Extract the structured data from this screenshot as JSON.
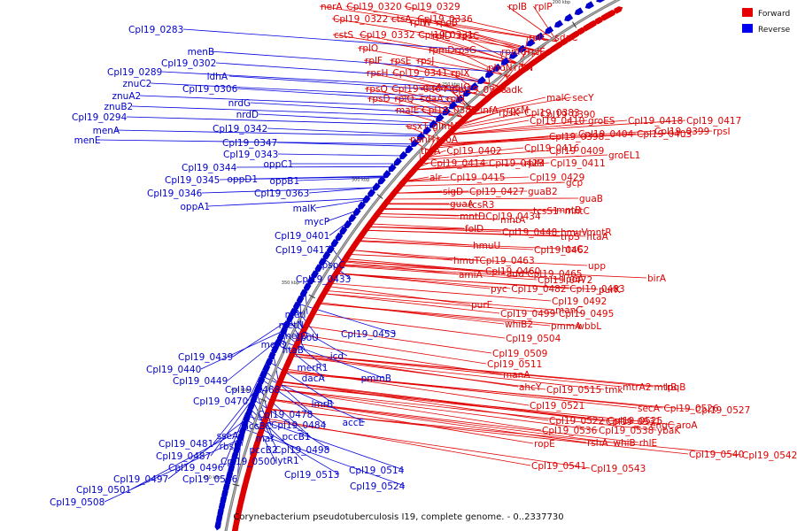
{
  "caption": "Corynebacterium pseudotuberculosis I19, complete genome. - 0..2337730",
  "legend": [
    {
      "label": "Forward",
      "color": "#e60000"
    },
    {
      "label": "Reverse",
      "color": "#0000ee"
    }
  ],
  "ticks": [
    "200 kbp",
    "250 kbp",
    "300 kbp",
    "350 kbp",
    "400 kbp",
    "450 kbp",
    "500 kbp",
    "550 kbp"
  ],
  "forward_labels": [
    "nerA",
    "Cpl19_0320",
    "Cpl19_0329",
    "rplB",
    "rplP",
    "Cpl19_0322",
    "ctsA",
    "Cpl19_0336",
    "rplW",
    "rpoB",
    "cstS",
    "Cpl19_0332",
    "Cpl19_0331",
    "rplD",
    "rpsC",
    "rplO",
    "rpmD",
    "rpsG",
    "rplC",
    "sdaC",
    "rplF",
    "rpsE",
    "rpsJ",
    "rpmC",
    "rplE",
    "rpsH",
    "Cpl19_0341",
    "rplX",
    "phoN",
    "rplN",
    "ansA",
    "malG",
    "rpsQ",
    "Cpl19_0364",
    "Cpl19_0378",
    "adk",
    "rpsD",
    "rplQ",
    "sdaA",
    "rplR",
    "malC",
    "secY",
    "malE",
    "Cpl19_0382",
    "infA",
    "rpsM",
    "rpsK",
    "Cpl19_0383",
    "Cpl19_0390",
    "esxT",
    "glmM",
    "Cpl19_0410",
    "groES",
    "nanH",
    "rpoA",
    "Cpl19_0398",
    "Cpl19_0404",
    "Cpl19_0403",
    "Cpl19_0418",
    "Cpl19_0417",
    "truA",
    "Cpl19_0402",
    "Cpl19_0409",
    "Cpl19_0416",
    "Cpl19_0399",
    "rpsI",
    "Cpl19_0414",
    "Cpl19_0423",
    "rplM",
    "Cpl19_0411",
    "groEL1",
    "alr",
    "Cpl19_0415",
    "Cpl19_0429",
    "gcp",
    "sigD",
    "Cpl19_0427",
    "guaB2",
    "guaB",
    "guaA",
    "tcsR3",
    "tcsS1",
    "mntC",
    "mntD",
    "Cpl19_0434",
    "mntA",
    "mntB",
    "folD",
    "Cpl19_0448",
    "hmuV",
    "mntR",
    "hmuU",
    "trpS",
    "htaA",
    "hmuT",
    "Cpl19_0463",
    "Cpl19_0462",
    "htaC",
    "Cpl19_0460",
    "add",
    "Cpl19_0465",
    "upp",
    "amiA",
    "Cpl19_0472",
    "lpdA",
    "pyc",
    "Cpl19_0482",
    "Cpl19_0483",
    "birA",
    "Cpl19_0492",
    "purK",
    "purE",
    "Cpl19_0499",
    "Cpl19_0495",
    "manC",
    "whiB2",
    "pmmA",
    "wbbL",
    "Cpl19_0504",
    "Cpl19_0509",
    "Cpl19_0511",
    "manA",
    "ahcY",
    "Cpl19_0515",
    "tmk",
    "mtrA2",
    "mtrB",
    "lpqB",
    "Cpl19_0521",
    "secA",
    "Cpl19_0526",
    "Cpl19_0527",
    "Cpl19_0522",
    "Cpl19_0525",
    "Cpl19_0531",
    "engC",
    "aroA",
    "Cpl19_0536",
    "Cpl19_0538",
    "ybaK",
    "ropE",
    "rshA",
    "whiB",
    "rhlE",
    "Cpl19_0540",
    "Cpl19_0542",
    "Cpl19_0541",
    "Cpl19_0543"
  ],
  "reverse_labels": [
    "Cpl19_0283",
    "menB",
    "Cpl19_0289",
    "Cpl19_0302",
    "znuC2",
    "znuA2",
    "ldhA",
    "Cpl19_0306",
    "znuB2",
    "Cpl19_0294",
    "menA",
    "menE",
    "nrdG",
    "nrdD",
    "Cpl19_0342",
    "Cpl19_0347",
    "Cpl19_0343",
    "oppC1",
    "Cpl19_0344",
    "oppD1",
    "oppB1",
    "Cpl19_0345",
    "Cpl19_0346",
    "Cpl19_0363",
    "oppA1",
    "malK",
    "mycP",
    "Cpl19_0401",
    "Cpl19_0412",
    "pspC",
    "Cpl19_0433",
    "metI",
    "metN",
    "metQ",
    "metO",
    "spoU",
    "Cpl19_0453",
    "Cpl19_0439",
    "htaB",
    "icd",
    "Cpl19_0440",
    "merR1",
    "Cpl19_0449",
    "dacA",
    "pmmB",
    "Cpl19_0468",
    "lmrB",
    "Cpl19_0470",
    "Cpl19_0478",
    "accBC",
    "Cpl19_0484",
    "accE",
    "sseA",
    "maf",
    "pccB1",
    "Cpl19_0481",
    "rbsK",
    "pccB2",
    "Cpl19_0498",
    "Cpl19_0487",
    "lytR1",
    "Cpl19_0500",
    "Cpl19_0496",
    "Cpl19_0514",
    "Cpl19_0497",
    "Cpl19_0506",
    "Cpl19_0513",
    "Cpl19_0501",
    "Cpl19_0524",
    "Cpl19_0508"
  ]
}
